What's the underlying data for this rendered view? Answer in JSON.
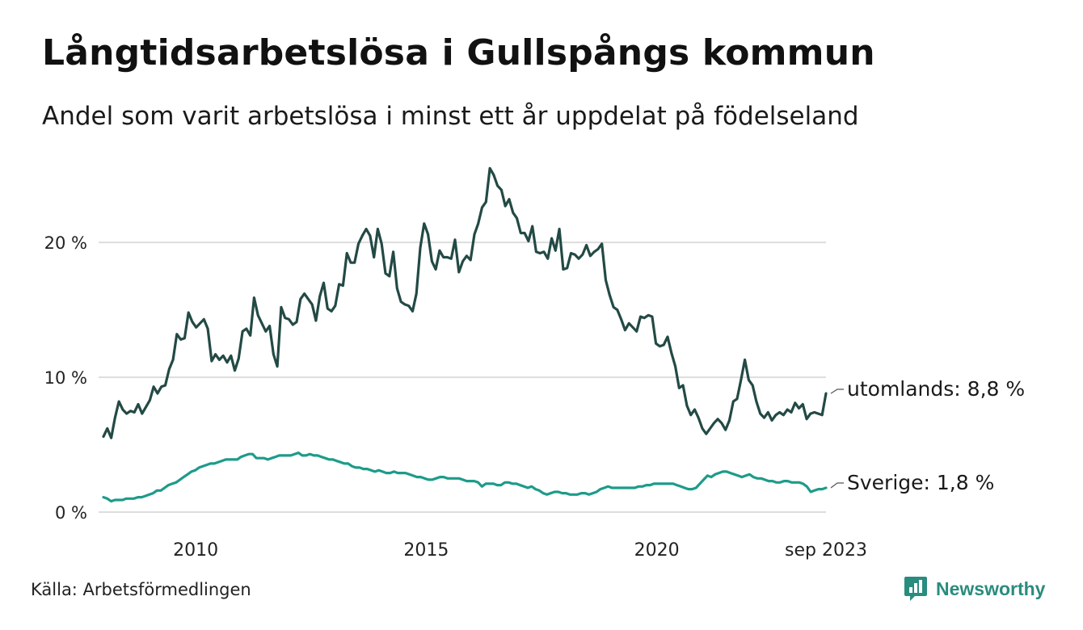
{
  "title": "Långtidsarbetslösa i Gullspångs kommun",
  "subtitle": "Andel som varit arbetslösa i minst ett år uppdelat på födelseland",
  "source": "Källa: Arbetsförmedlingen",
  "brand": {
    "name": "Newsworthy",
    "icon": "newsworthy-logo-icon",
    "color": "#2a8c7e"
  },
  "colors": {
    "utomlands": "#234a45",
    "sverige": "#1e9b8a",
    "grid": "#dddddd"
  },
  "chart_data": {
    "type": "line",
    "title": "Långtidsarbetslösa i Gullspångs kommun",
    "xlabel": "",
    "ylabel": "",
    "x_start": "2008-01",
    "x_end": "2023-09",
    "xlim": [
      2008.0,
      2023.67
    ],
    "ylim": [
      0,
      26
    ],
    "yticks": [
      0,
      10,
      20
    ],
    "ytick_labels": [
      "0 %",
      "10 %",
      "20 %"
    ],
    "xticks": [
      2010,
      2015,
      2020,
      2023.67
    ],
    "xtick_labels": [
      "2010",
      "2015",
      "2020",
      "sep 2023"
    ],
    "grid": true,
    "series": [
      {
        "name": "utomlands",
        "end_label": "utomlands: 8,8 %",
        "color": "#234a45",
        "values": [
          5.6,
          6.2,
          5.5,
          7.0,
          8.2,
          7.6,
          7.3,
          7.5,
          7.4,
          8.0,
          7.3,
          7.8,
          8.3,
          9.3,
          8.8,
          9.3,
          9.4,
          10.6,
          11.3,
          13.2,
          12.8,
          12.9,
          14.8,
          14.1,
          13.7,
          14.0,
          14.3,
          13.6,
          11.2,
          11.7,
          11.3,
          11.6,
          11.1,
          11.6,
          10.5,
          11.4,
          13.4,
          13.6,
          13.1,
          15.9,
          14.6,
          14.0,
          13.4,
          13.8,
          11.7,
          10.8,
          15.2,
          14.4,
          14.3,
          13.9,
          14.1,
          15.8,
          16.2,
          15.8,
          15.4,
          14.2,
          16.0,
          17.0,
          15.1,
          14.9,
          15.3,
          16.9,
          16.8,
          19.2,
          18.5,
          18.5,
          19.9,
          20.5,
          21.0,
          20.5,
          18.9,
          21.0,
          19.9,
          17.7,
          17.5,
          19.3,
          16.6,
          15.6,
          15.4,
          15.3,
          14.9,
          16.2,
          19.6,
          21.4,
          20.6,
          18.6,
          18.0,
          19.4,
          18.9,
          18.9,
          18.8,
          20.2,
          17.8,
          18.6,
          19.0,
          18.7,
          20.6,
          21.4,
          22.6,
          23.0,
          25.5,
          25.0,
          24.2,
          23.9,
          22.7,
          23.2,
          22.2,
          21.8,
          20.7,
          20.7,
          20.1,
          21.2,
          19.3,
          19.2,
          19.3,
          18.8,
          20.3,
          19.4,
          21.0,
          18.0,
          18.1,
          19.2,
          19.1,
          18.8,
          19.1,
          19.8,
          19.0,
          19.3,
          19.5,
          19.9,
          17.2,
          16.1,
          15.2,
          15.0,
          14.3,
          13.5,
          14.0,
          13.7,
          13.4,
          14.5,
          14.4,
          14.6,
          14.5,
          12.5,
          12.3,
          12.4,
          13.0,
          11.8,
          10.8,
          9.2,
          9.4,
          7.9,
          7.2,
          7.6,
          7.0,
          6.2,
          5.8,
          6.2,
          6.6,
          6.9,
          6.6,
          6.1,
          6.8,
          8.2,
          8.4,
          9.8,
          11.3,
          9.8,
          9.4,
          8.2,
          7.3,
          7.0,
          7.4,
          6.8,
          7.2,
          7.4,
          7.2,
          7.6,
          7.4,
          8.1,
          7.7,
          8.0,
          6.9,
          7.3,
          7.4,
          7.3,
          7.2,
          8.8
        ]
      },
      {
        "name": "Sverige",
        "end_label": "Sverige: 1,8 %",
        "color": "#1e9b8a",
        "values": [
          1.1,
          1.0,
          0.8,
          0.9,
          0.9,
          0.9,
          1.0,
          1.0,
          1.0,
          1.1,
          1.1,
          1.2,
          1.3,
          1.4,
          1.6,
          1.6,
          1.8,
          2.0,
          2.1,
          2.2,
          2.4,
          2.6,
          2.8,
          3.0,
          3.1,
          3.3,
          3.4,
          3.5,
          3.6,
          3.6,
          3.7,
          3.8,
          3.9,
          3.9,
          3.9,
          3.9,
          4.1,
          4.2,
          4.3,
          4.3,
          4.0,
          4.0,
          4.0,
          3.9,
          4.0,
          4.1,
          4.2,
          4.2,
          4.2,
          4.2,
          4.3,
          4.4,
          4.2,
          4.2,
          4.3,
          4.2,
          4.2,
          4.1,
          4.0,
          3.9,
          3.9,
          3.8,
          3.7,
          3.6,
          3.6,
          3.4,
          3.3,
          3.3,
          3.2,
          3.2,
          3.1,
          3.0,
          3.1,
          3.0,
          2.9,
          2.9,
          3.0,
          2.9,
          2.9,
          2.9,
          2.8,
          2.7,
          2.6,
          2.6,
          2.5,
          2.4,
          2.4,
          2.5,
          2.6,
          2.6,
          2.5,
          2.5,
          2.5,
          2.5,
          2.4,
          2.3,
          2.3,
          2.3,
          2.2,
          1.9,
          2.1,
          2.1,
          2.1,
          2.0,
          2.0,
          2.2,
          2.2,
          2.1,
          2.1,
          2.0,
          1.9,
          1.8,
          1.9,
          1.7,
          1.6,
          1.4,
          1.3,
          1.4,
          1.5,
          1.5,
          1.4,
          1.4,
          1.3,
          1.3,
          1.3,
          1.4,
          1.4,
          1.3,
          1.4,
          1.5,
          1.7,
          1.8,
          1.9,
          1.8,
          1.8,
          1.8,
          1.8,
          1.8,
          1.8,
          1.8,
          1.9,
          1.9,
          2.0,
          2.0,
          2.1,
          2.1,
          2.1,
          2.1,
          2.1,
          2.1,
          2.0,
          1.9,
          1.8,
          1.7,
          1.7,
          1.8,
          2.1,
          2.4,
          2.7,
          2.6,
          2.8,
          2.9,
          3.0,
          3.0,
          2.9,
          2.8,
          2.7,
          2.6,
          2.7,
          2.8,
          2.6,
          2.5,
          2.5,
          2.4,
          2.3,
          2.3,
          2.2,
          2.2,
          2.3,
          2.3,
          2.2,
          2.2,
          2.2,
          2.1,
          1.9,
          1.5,
          1.6,
          1.7,
          1.7,
          1.8
        ]
      }
    ]
  }
}
